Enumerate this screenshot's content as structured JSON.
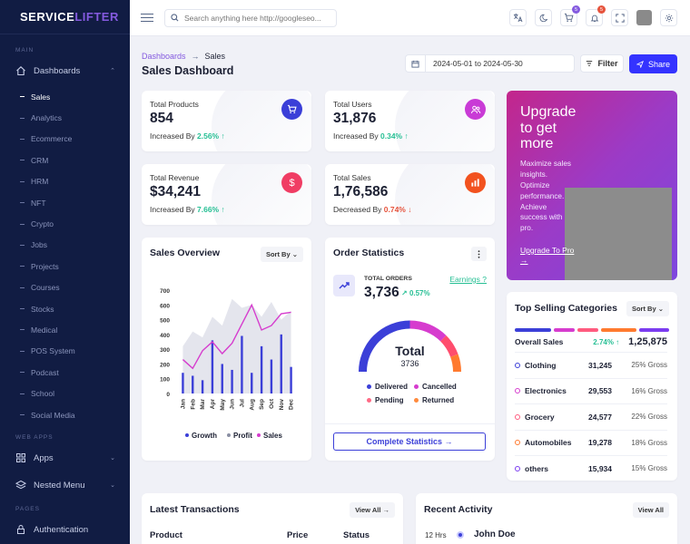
{
  "sidebar": {
    "logo_a": "SERVICE",
    "logo_b": "LIFTER",
    "cat_main": "MAIN",
    "dashboards_label": "Dashboards",
    "sub_items": [
      "Sales",
      "Analytics",
      "Ecommerce",
      "CRM",
      "HRM",
      "NFT",
      "Crypto",
      "Jobs",
      "Projects",
      "Courses",
      "Stocks",
      "Medical",
      "POS System",
      "Podcast",
      "School",
      "Social Media"
    ],
    "cat_web": "WEB APPS",
    "apps_label": "Apps",
    "nested_label": "Nested Menu",
    "cat_pages": "PAGES",
    "auth_label": "Authentication"
  },
  "header": {
    "search_placeholder": "Search anything here http://googleseo...",
    "cart_badge": "5",
    "notif_badge": "5"
  },
  "page": {
    "breadcrumb_link": "Dashboards",
    "breadcrumb_current": "Sales",
    "title": "Sales Dashboard",
    "date_range": "2024-05-01 to 2024-05-30",
    "filter_label": "Filter",
    "share_label": "Share"
  },
  "stats": {
    "products": {
      "label": "Total Products",
      "value": "854",
      "sub": "Increased By",
      "change": "2.56%",
      "arrow": "↑"
    },
    "users": {
      "label": "Total Users",
      "value": "31,876",
      "sub": "Increased By",
      "change": "0.34%",
      "arrow": "↑"
    },
    "revenue": {
      "label": "Total Revenue",
      "value": "$34,241",
      "sub": "Increased By",
      "change": "7.66%",
      "arrow": "↑"
    },
    "sales": {
      "label": "Total Sales",
      "value": "1,76,586",
      "sub": "Decreased By",
      "change": "0.74%",
      "arrow": "↓"
    }
  },
  "upgrade": {
    "title": "Upgrade to get more",
    "text": "Maximize sales insights. Optimize performance. Achieve success with pro.",
    "link": "Upgrade To Pro →"
  },
  "sales_overview": {
    "title": "Sales Overview",
    "sort": "Sort By ⌄",
    "legend": [
      "Growth",
      "Profit",
      "Sales"
    ]
  },
  "chart_data": {
    "type": "bar",
    "categories": [
      "Jan",
      "Feb",
      "Mar",
      "Apr",
      "May",
      "Jun",
      "Jul",
      "Aug",
      "Sep",
      "Oct",
      "Nov",
      "Dec"
    ],
    "y_ticks": [
      0,
      100,
      200,
      300,
      400,
      500,
      600,
      700
    ],
    "ylim": [
      0,
      700
    ],
    "series": [
      {
        "name": "Growth",
        "type": "bar",
        "color": "#3b3fd8",
        "values": [
          140,
          120,
          90,
          360,
          200,
          160,
          390,
          140,
          320,
          230,
          400,
          180
        ]
      },
      {
        "name": "Profit",
        "type": "area",
        "color": "#dfe1ea",
        "values": [
          320,
          420,
          380,
          520,
          460,
          640,
          580,
          600,
          520,
          620,
          500,
          560
        ]
      },
      {
        "name": "Sales",
        "type": "line",
        "color": "#d63cce",
        "values": [
          230,
          170,
          290,
          350,
          270,
          340,
          470,
          600,
          430,
          460,
          540,
          550
        ]
      }
    ]
  },
  "order_stats": {
    "title": "Order Statistics",
    "total_label": "TOTAL ORDERS",
    "total_value": "3,736",
    "change": "0.57%",
    "earnings_link": "Earnings ?",
    "gauge_label": "Total",
    "gauge_value": "3736",
    "legend": [
      {
        "name": "Delivered",
        "color": "#3b3fd8"
      },
      {
        "name": "Cancelled",
        "color": "#d63cce"
      },
      {
        "name": "Pending",
        "color": "#ff6a85"
      },
      {
        "name": "Returned",
        "color": "#ff8a3d"
      }
    ],
    "cta": "Complete Statistics →"
  },
  "top_categories": {
    "title": "Top Selling Categories",
    "sort": "Sort By ⌄",
    "overall_label": "Overall Sales",
    "overall_change": "2.74% ↑",
    "overall_value": "1,25,875",
    "rows": [
      {
        "name": "Clothing",
        "value": "31,245",
        "gross": "25% Gross",
        "color": "#3b3fd8"
      },
      {
        "name": "Electronics",
        "value": "29,553",
        "gross": "16% Gross",
        "color": "#d63cce"
      },
      {
        "name": "Grocery",
        "value": "24,577",
        "gross": "22% Gross",
        "color": "#ff5b7f"
      },
      {
        "name": "Automobiles",
        "value": "19,278",
        "gross": "18% Gross",
        "color": "#ff7a2f"
      },
      {
        "name": "others",
        "value": "15,934",
        "gross": "15% Gross",
        "color": "#7b3cf0"
      }
    ]
  },
  "transactions": {
    "title": "Latest Transactions",
    "view_all": "View All →",
    "col_product": "Product",
    "col_price": "Price",
    "col_status": "Status"
  },
  "activity": {
    "title": "Recent Activity",
    "view_all": "View All",
    "time": "12 Hrs",
    "name": "John Doe"
  }
}
